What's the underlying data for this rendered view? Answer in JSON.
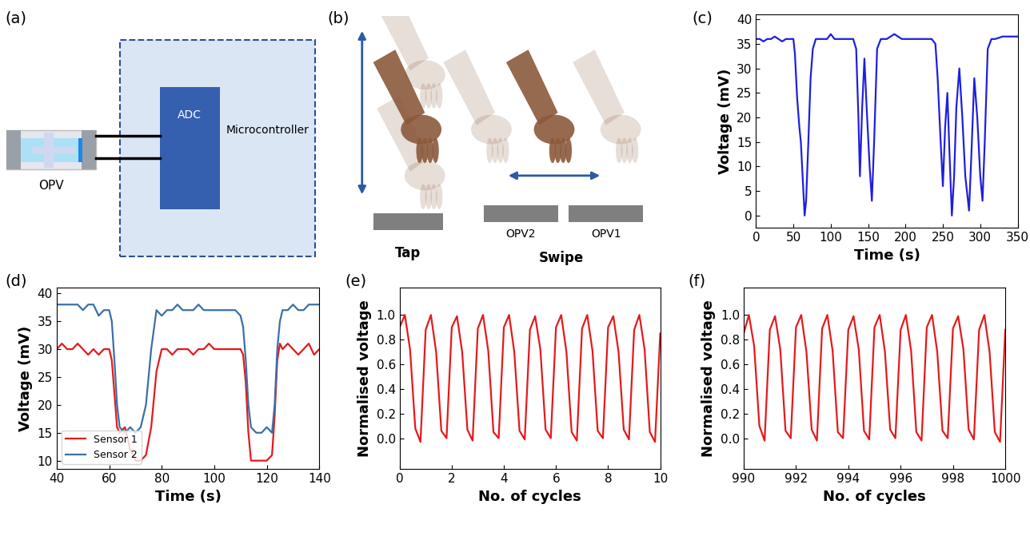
{
  "panel_labels": [
    "(a)",
    "(b)",
    "(c)",
    "(d)",
    "(e)",
    "(f)"
  ],
  "diagram_a": {
    "device_label": "OPV",
    "adc_label": "ADC",
    "controller_label": "Microcontroller"
  },
  "diagram_b": {
    "gestures": [
      "Tap",
      "Swipe"
    ],
    "sensors": [
      "OPV2",
      "OPV1"
    ]
  },
  "chart_data": [
    {
      "type": "line",
      "xlabel": "Time (s)",
      "ylabel": "Voltage (mV)",
      "color": "#1f1fe0",
      "xlim": [
        0,
        350
      ],
      "ylim": [
        -2.5,
        41
      ],
      "xticks": [
        0,
        50,
        100,
        150,
        200,
        250,
        300,
        350
      ],
      "yticks": [
        0,
        5,
        10,
        15,
        20,
        25,
        30,
        35,
        40
      ],
      "x": [
        0,
        5,
        10,
        15,
        20,
        25,
        30,
        35,
        40,
        45,
        50,
        52,
        55,
        58,
        60,
        63,
        65,
        67,
        70,
        73,
        76,
        80,
        85,
        90,
        95,
        100,
        105,
        110,
        115,
        120,
        125,
        130,
        134,
        137,
        139,
        142,
        145,
        148,
        152,
        155,
        158,
        162,
        167,
        175,
        185,
        195,
        205,
        215,
        225,
        235,
        240,
        243,
        247,
        250,
        253,
        256,
        259,
        262,
        265,
        268,
        272,
        276,
        280,
        285,
        288,
        292,
        296,
        300,
        303,
        306,
        310,
        315,
        320,
        330,
        340,
        350
      ],
      "values": [
        36,
        36,
        35.5,
        36,
        36,
        36.5,
        36,
        35.5,
        36,
        36,
        36,
        33,
        24,
        18,
        15,
        6,
        0,
        3,
        15,
        28,
        34,
        36,
        36,
        36,
        36,
        37,
        36,
        36,
        36,
        36,
        36,
        36,
        34,
        20,
        8,
        22,
        32,
        22,
        10,
        3,
        15,
        34,
        36,
        36,
        37,
        36,
        36,
        36,
        36,
        36,
        35,
        28,
        15,
        6,
        18,
        25,
        12,
        0,
        8,
        22,
        30,
        20,
        8,
        1,
        12,
        28,
        20,
        8,
        3,
        15,
        34,
        36,
        36,
        36.5,
        36.5,
        36.5
      ]
    },
    {
      "type": "line",
      "xlabel": "Time (s)",
      "ylabel": "Voltage (mV)",
      "legend": "lower left",
      "xlim": [
        40,
        140
      ],
      "ylim": [
        8.5,
        41
      ],
      "xticks": [
        40,
        60,
        80,
        100,
        120,
        140
      ],
      "yticks": [
        10,
        15,
        20,
        25,
        30,
        35,
        40
      ],
      "x": [
        40,
        42,
        44,
        46,
        48,
        50,
        52,
        54,
        56,
        58,
        60,
        61,
        62,
        63,
        64,
        66,
        68,
        70,
        72,
        74,
        76,
        78,
        80,
        82,
        84,
        86,
        88,
        90,
        92,
        94,
        96,
        98,
        100,
        102,
        104,
        106,
        108,
        110,
        111,
        112,
        113,
        114,
        116,
        118,
        120,
        122,
        123,
        124,
        125,
        126,
        128,
        130,
        132,
        134,
        136,
        138,
        140
      ],
      "series": [
        {
          "name": "Sensor 1",
          "color": "#e31a1c",
          "values": [
            30,
            31,
            30,
            30,
            31,
            30,
            29,
            30,
            29,
            30,
            30,
            28,
            22,
            16,
            15,
            16,
            12,
            10,
            10,
            11,
            16,
            26,
            30,
            30,
            29,
            30,
            30,
            30,
            29,
            30,
            30,
            31,
            30,
            30,
            30,
            30,
            30,
            30,
            29,
            24,
            15,
            10,
            10,
            10,
            10,
            11,
            18,
            28,
            31,
            30,
            31,
            30,
            29,
            30,
            31,
            29,
            30
          ]
        },
        {
          "name": "Sensor 2",
          "color": "#3a70a8",
          "values": [
            38,
            38,
            38,
            38,
            38,
            37,
            38,
            38,
            36,
            37,
            37,
            35,
            28,
            20,
            16,
            15,
            16,
            15,
            16,
            20,
            30,
            37,
            36,
            37,
            37,
            38,
            37,
            37,
            37,
            38,
            37,
            37,
            37,
            37,
            37,
            37,
            37,
            36,
            34,
            28,
            20,
            16,
            15,
            15,
            16,
            15,
            20,
            30,
            35,
            37,
            37,
            38,
            37,
            37,
            38,
            38,
            38
          ]
        }
      ]
    },
    {
      "type": "line",
      "xlabel": "No. of cycles",
      "ylabel": "Normalised voltage",
      "color": "#e31a1c",
      "xlim": [
        0,
        10
      ],
      "ylim": [
        -0.25,
        1.22
      ],
      "xticks": [
        0,
        2,
        4,
        6,
        8,
        10
      ],
      "yticks": [
        {
          "value": 0,
          "label": "0.0"
        },
        {
          "value": 0.2,
          "label": "0.2"
        },
        {
          "value": 0.4,
          "label": "0.4"
        },
        {
          "value": 0.6,
          "label": "0.6"
        },
        {
          "value": 0.8,
          "label": "0.8"
        },
        {
          "value": 1,
          "label": "1.0"
        }
      ],
      "x": [
        0,
        0.2,
        0.4,
        0.6,
        0.8,
        1,
        1.2,
        1.4,
        1.6,
        1.8,
        2,
        2.2,
        2.4,
        2.6,
        2.8,
        3,
        3.2,
        3.4,
        3.6,
        3.8,
        4,
        4.2,
        4.4,
        4.6,
        4.8,
        5,
        5.2,
        5.4,
        5.6,
        5.8,
        6,
        6.2,
        6.4,
        6.6,
        6.8,
        7,
        7.2,
        7.4,
        7.6,
        7.8,
        8,
        8.2,
        8.4,
        8.6,
        8.8,
        9,
        9.2,
        9.4,
        9.6,
        9.8,
        10
      ],
      "values": [
        0.9,
        1.0,
        0.72,
        0.08,
        -0.03,
        0.88,
        1.0,
        0.7,
        0.06,
        0.0,
        0.9,
        0.99,
        0.7,
        0.07,
        -0.02,
        0.89,
        1.0,
        0.71,
        0.05,
        0.0,
        0.9,
        1.0,
        0.7,
        0.06,
        -0.01,
        0.88,
        0.99,
        0.72,
        0.07,
        0.0,
        0.9,
        1.0,
        0.7,
        0.05,
        -0.02,
        0.89,
        1.0,
        0.71,
        0.06,
        0.0,
        0.9,
        0.99,
        0.7,
        0.07,
        -0.01,
        0.88,
        1.0,
        0.72,
        0.05,
        -0.03,
        0.85
      ]
    },
    {
      "type": "line",
      "xlabel": "No. of cycles",
      "ylabel": "Normalised voltage",
      "color": "#e31a1c",
      "xlim": [
        990,
        1000
      ],
      "ylim": [
        -0.25,
        1.22
      ],
      "xticks": [
        990,
        992,
        994,
        996,
        998,
        1000
      ],
      "yticks": [
        {
          "value": 0,
          "label": "0.0"
        },
        {
          "value": 0.2,
          "label": "0.2"
        },
        {
          "value": 0.4,
          "label": "0.4"
        },
        {
          "value": 0.6,
          "label": "0.6"
        },
        {
          "value": 0.8,
          "label": "0.8"
        },
        {
          "value": 1,
          "label": "1.0"
        }
      ],
      "x": [
        990,
        990.2,
        990.4,
        990.6,
        990.8,
        991,
        991.2,
        991.4,
        991.6,
        991.8,
        992,
        992.2,
        992.4,
        992.6,
        992.8,
        993,
        993.2,
        993.4,
        993.6,
        993.8,
        994,
        994.2,
        994.4,
        994.6,
        994.8,
        995,
        995.2,
        995.4,
        995.6,
        995.8,
        996,
        996.2,
        996.4,
        996.6,
        996.8,
        997,
        997.2,
        997.4,
        997.6,
        997.8,
        998,
        998.2,
        998.4,
        998.6,
        998.8,
        999,
        999.2,
        999.4,
        999.6,
        999.8,
        1000
      ],
      "values": [
        0.85,
        1.0,
        0.75,
        0.1,
        -0.02,
        0.88,
        0.99,
        0.72,
        0.06,
        0.0,
        0.9,
        1.0,
        0.7,
        0.07,
        -0.02,
        0.89,
        1.0,
        0.71,
        0.05,
        0.0,
        0.88,
        0.99,
        0.72,
        0.06,
        -0.01,
        0.9,
        1.0,
        0.7,
        0.07,
        0.0,
        0.88,
        1.0,
        0.71,
        0.05,
        -0.02,
        0.9,
        1.0,
        0.7,
        0.06,
        0.0,
        0.89,
        0.99,
        0.72,
        0.07,
        -0.01,
        0.88,
        1.0,
        0.7,
        0.05,
        -0.03,
        0.88
      ]
    }
  ]
}
